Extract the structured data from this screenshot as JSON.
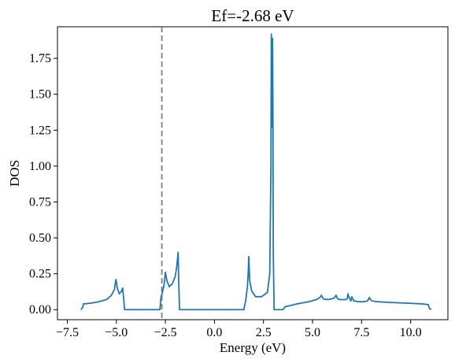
{
  "chart_data": {
    "type": "line",
    "title": "Ef=-2.68 eV",
    "xlabel": "Energy (eV)",
    "ylabel": "DOS",
    "xlim": [
      -8.0,
      11.9
    ],
    "ylim": [
      -0.07,
      1.97
    ],
    "x_ticks": [
      -7.5,
      -5.0,
      -2.5,
      0.0,
      2.5,
      5.0,
      7.5,
      10.0
    ],
    "x_tick_labels": [
      "−7.5",
      "−5.0",
      "−2.5",
      "0.0",
      "2.5",
      "5.0",
      "7.5",
      "10.0"
    ],
    "y_ticks": [
      0.0,
      0.25,
      0.5,
      0.75,
      1.0,
      1.25,
      1.5,
      1.75
    ],
    "y_tick_labels": [
      "0.00",
      "0.25",
      "0.50",
      "0.75",
      "1.00",
      "1.25",
      "1.50",
      "1.75"
    ],
    "fermi_level": -2.68,
    "fermi_line_color": "#7f7f7f",
    "series_color": "#1f77b4",
    "grid": false,
    "series": [
      {
        "x": [
          -6.8,
          -6.7,
          -6.68,
          -6.3,
          -5.9,
          -5.5,
          -5.25,
          -5.1,
          -5.02,
          -4.95,
          -4.85,
          -4.75,
          -4.68,
          -4.62,
          -4.58,
          -4.4,
          -3.5,
          -2.78,
          -2.72,
          -2.65,
          -2.56,
          -2.5,
          -2.42,
          -2.3,
          -2.15,
          -2.0,
          -1.92,
          -1.85,
          -1.82,
          -1.78,
          -1.6,
          0.0,
          1.5,
          1.6,
          1.68,
          1.72,
          1.75,
          1.8,
          1.9,
          2.1,
          2.4,
          2.7,
          2.82,
          2.88,
          2.9,
          2.94,
          2.96,
          2.98,
          3.0,
          3.04,
          3.06,
          3.3,
          3.5,
          3.6,
          4.2,
          4.8,
          5.2,
          5.38,
          5.45,
          5.55,
          5.8,
          6.1,
          6.2,
          6.28,
          6.4,
          6.7,
          6.78,
          6.8,
          6.88,
          6.95,
          7.0,
          7.1,
          7.2,
          7.3,
          7.6,
          7.8,
          7.9,
          7.95,
          8.05,
          8.3,
          9.0,
          9.8,
          10.6,
          10.9,
          10.95,
          11.05
        ],
        "y": [
          0.0,
          0.02,
          0.04,
          0.045,
          0.055,
          0.07,
          0.1,
          0.14,
          0.21,
          0.15,
          0.11,
          0.125,
          0.15,
          0.07,
          0.0,
          0.0,
          0.0,
          0.0,
          0.09,
          0.12,
          0.18,
          0.26,
          0.2,
          0.16,
          0.18,
          0.23,
          0.3,
          0.4,
          0.2,
          0.0,
          0.0,
          0.0,
          0.0,
          0.07,
          0.16,
          0.25,
          0.37,
          0.2,
          0.13,
          0.09,
          0.09,
          0.12,
          0.25,
          1.0,
          1.92,
          1.27,
          1.89,
          1.45,
          0.4,
          0.0,
          0.0,
          0.0,
          0.0,
          0.02,
          0.04,
          0.055,
          0.07,
          0.085,
          0.1,
          0.075,
          0.07,
          0.08,
          0.1,
          0.075,
          0.07,
          0.07,
          0.08,
          0.11,
          0.08,
          0.06,
          0.09,
          0.06,
          0.06,
          0.055,
          0.055,
          0.06,
          0.085,
          0.07,
          0.06,
          0.055,
          0.05,
          0.045,
          0.04,
          0.035,
          0.01,
          0.0
        ]
      }
    ]
  }
}
